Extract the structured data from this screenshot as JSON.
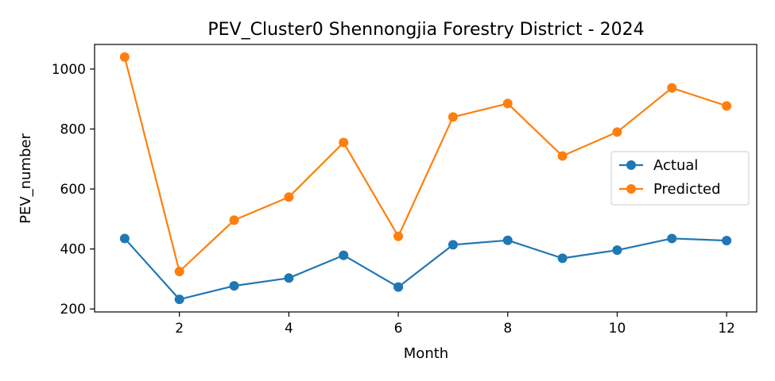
{
  "chart_data": {
    "type": "line",
    "title": "PEV_Cluster0 Shennongjia Forestry District - 2024",
    "xlabel": "Month",
    "ylabel": "PEV_number",
    "x": [
      1,
      2,
      3,
      4,
      5,
      6,
      7,
      8,
      9,
      10,
      11,
      12
    ],
    "xlim": [
      0.45,
      12.55
    ],
    "ylim": [
      190,
      1082
    ],
    "xticks": [
      2,
      4,
      6,
      8,
      10,
      12
    ],
    "yticks": [
      200,
      400,
      600,
      800,
      1000
    ],
    "grid": false,
    "legend_position": "right",
    "series": [
      {
        "name": "Actual",
        "color": "#1f77b4",
        "values": [
          435,
          232,
          277,
          303,
          379,
          273,
          414,
          429,
          369,
          396,
          435,
          428
        ]
      },
      {
        "name": "Predicted",
        "color": "#ff7f0e",
        "values": [
          1040,
          325,
          496,
          573,
          755,
          442,
          840,
          885,
          710,
          790,
          937,
          877
        ]
      }
    ]
  }
}
